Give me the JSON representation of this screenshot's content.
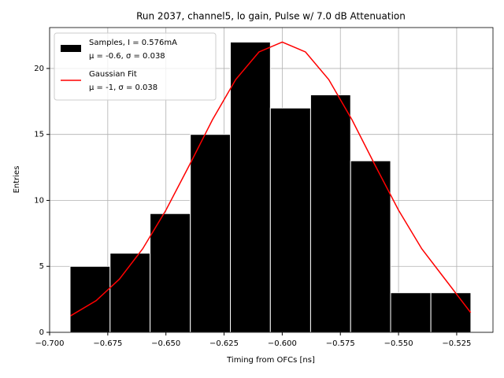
{
  "chart_data": {
    "type": "histogram",
    "title": "Run 2037, channel5, lo gain, Pulse w/ 7.0 dB Attenuation",
    "x_label": "Timing from OFCs [ns]",
    "y_label": "Entries",
    "xlim": [
      -0.7,
      -0.5094
    ],
    "ylim": [
      0,
      23.1
    ],
    "xticks": [
      {
        "value": -0.7,
        "label": "−0.700"
      },
      {
        "value": -0.675,
        "label": "−0.675"
      },
      {
        "value": -0.65,
        "label": "−0.650"
      },
      {
        "value": -0.625,
        "label": "−0.625"
      },
      {
        "value": -0.6,
        "label": "−0.600"
      },
      {
        "value": -0.575,
        "label": "−0.575"
      },
      {
        "value": -0.55,
        "label": "−0.550"
      },
      {
        "value": -0.525,
        "label": "−0.525"
      }
    ],
    "yticks": [
      0,
      5,
      10,
      15,
      20
    ],
    "grid": true,
    "legend": "upper left",
    "series": [
      {
        "type": "histogram",
        "name": [
          "Samples, I = 0.576mA",
          "μ = -0.6, σ = 0.038"
        ],
        "color": "#000000",
        "bins": [
          -0.6912,
          -0.674,
          -0.6568,
          -0.6395,
          -0.6223,
          -0.6051,
          -0.5878,
          -0.5706,
          -0.5534,
          -0.5361,
          -0.5189
        ],
        "values": [
          5,
          6,
          9,
          15,
          22,
          17,
          18,
          13,
          3,
          3
        ]
      },
      {
        "type": "line",
        "name": [
          "Gaussian Fit",
          "μ = -1, σ = 0.038"
        ],
        "color": "#ff0000",
        "x": [
          -0.691,
          -0.68,
          -0.67,
          -0.66,
          -0.65,
          -0.64,
          -0.63,
          -0.62,
          -0.61,
          -0.6,
          -0.59,
          -0.58,
          -0.57,
          -0.56,
          -0.55,
          -0.54,
          -0.53,
          -0.519
        ],
        "values": [
          1.25,
          2.4,
          4.03,
          6.33,
          9.26,
          12.64,
          16.11,
          19.16,
          21.25,
          22,
          21.25,
          19.16,
          16.11,
          12.64,
          9.26,
          6.33,
          4.03,
          1.5
        ]
      }
    ]
  }
}
